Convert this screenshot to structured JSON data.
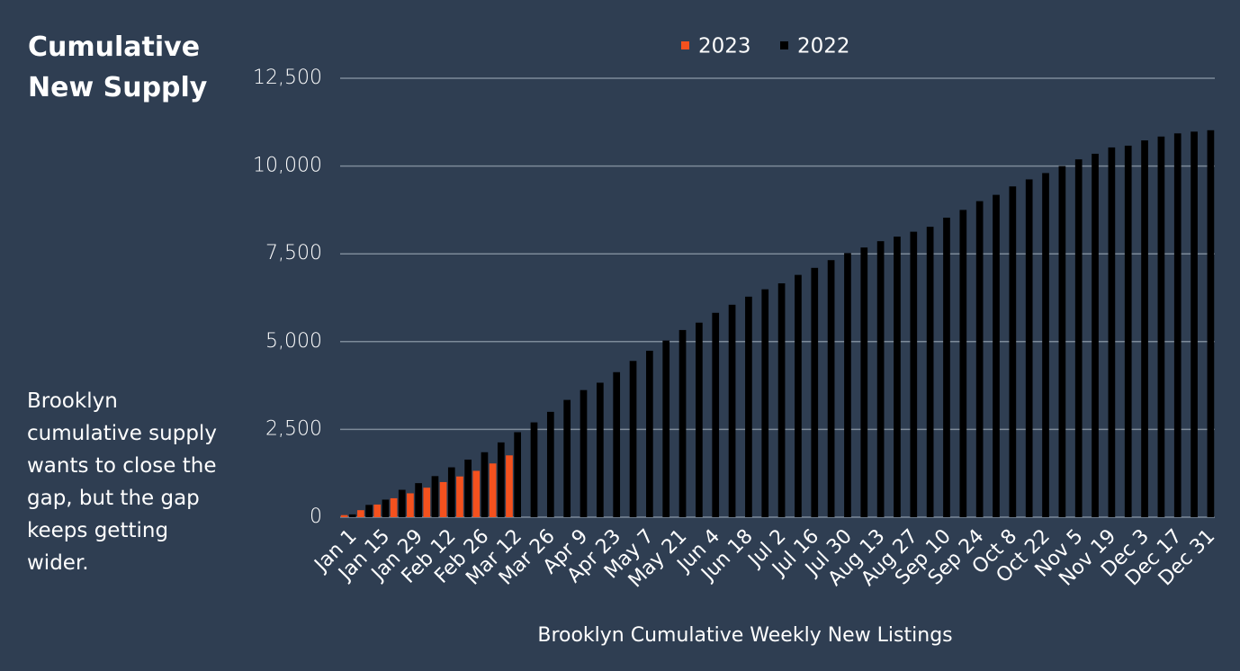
{
  "title": "Cumulative New Supply",
  "note": "Brooklyn cumulative supply wants to close the gap, but the gap keeps getting wider.",
  "chart_data": {
    "type": "bar",
    "x_label": "Brooklyn Cumulative Weekly New Listings",
    "categories": [
      "Jan 1",
      null,
      "Jan 15",
      null,
      "Jan 29",
      null,
      "Feb 12",
      null,
      "Feb 26",
      null,
      "Mar 12",
      null,
      "Mar 26",
      null,
      "Apr 9",
      null,
      "Apr 23",
      null,
      "May 7",
      null,
      "May 21",
      null,
      "Jun 4",
      null,
      "Jun 18",
      null,
      "Jul 2",
      null,
      "Jul 16",
      null,
      "Jul 30",
      null,
      "Aug 13",
      null,
      "Aug 27",
      null,
      "Sep 10",
      null,
      "Sep 24",
      null,
      "Oct 8",
      null,
      "Oct 22",
      null,
      "Nov 5",
      null,
      "Nov 19",
      null,
      "Dec 3",
      null,
      "Dec 17",
      null,
      "Dec 31"
    ],
    "series": [
      {
        "name": "2023",
        "color": "#f4511e",
        "values": [
          60,
          200,
          360,
          540,
          680,
          840,
          1000,
          1160,
          1320,
          1530,
          1760,
          null,
          null,
          null,
          null,
          null,
          null,
          null,
          null,
          null,
          null,
          null,
          null,
          null,
          null,
          null,
          null,
          null,
          null,
          null,
          null,
          null,
          null,
          null,
          null,
          null,
          null,
          null,
          null,
          null,
          null,
          null,
          null,
          null,
          null,
          null,
          null,
          null,
          null,
          null,
          null,
          null,
          null
        ]
      },
      {
        "name": "2022",
        "color": "#000000",
        "values": [
          80,
          350,
          500,
          780,
          970,
          1170,
          1420,
          1640,
          1850,
          2130,
          2420,
          2700,
          3000,
          3340,
          3620,
          3830,
          4130,
          4450,
          4740,
          5030,
          5330,
          5540,
          5820,
          6050,
          6280,
          6490,
          6660,
          6900,
          7100,
          7320,
          7520,
          7680,
          7860,
          7990,
          8130,
          8270,
          8530,
          8750,
          9000,
          9180,
          9420,
          9620,
          9800,
          10000,
          10190,
          10350,
          10530,
          10580,
          10730,
          10840,
          10930,
          10980,
          11020
        ]
      }
    ],
    "ylim": [
      0,
      12500
    ],
    "yticks": [
      0,
      {
        "value": 2500,
        "label": "2,500"
      },
      {
        "value": 5000,
        "label": "5,000"
      },
      {
        "value": 7500,
        "label": "7,500"
      },
      {
        "value": 10000,
        "label": "10,000"
      },
      {
        "value": 12500,
        "label": "12,500"
      }
    ],
    "grid": true,
    "legend": "top"
  }
}
